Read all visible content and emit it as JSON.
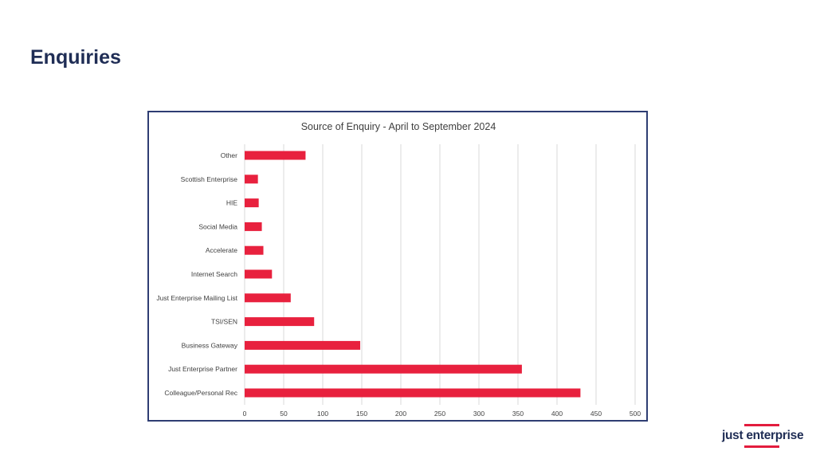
{
  "page": {
    "title": "Enquiries"
  },
  "logo": {
    "text": "just enterprise",
    "accent": "#e31c3d"
  },
  "chart_data": {
    "type": "bar",
    "orientation": "horizontal",
    "title": "Source of Enquiry - April to September 2024",
    "categories": [
      "Other",
      "Scottish Enterprise",
      "HIE",
      "Social Media",
      "Accelerate",
      "Internet Search",
      "Just Enterprise Mailing List",
      "TSI/SEN",
      "Business Gateway",
      "Just Enterprise Partner",
      "Colleague/Personal Rec"
    ],
    "values": [
      78,
      17,
      18,
      22,
      24,
      35,
      59,
      89,
      148,
      355,
      430
    ],
    "xlim": [
      0,
      500
    ],
    "xticks": [
      "0",
      "50",
      "100",
      "150",
      "200",
      "250",
      "300",
      "350",
      "400",
      "450",
      "500"
    ],
    "grid": "vertical",
    "bar_color": "#e8213e",
    "grid_color": "#d9d9d9"
  }
}
